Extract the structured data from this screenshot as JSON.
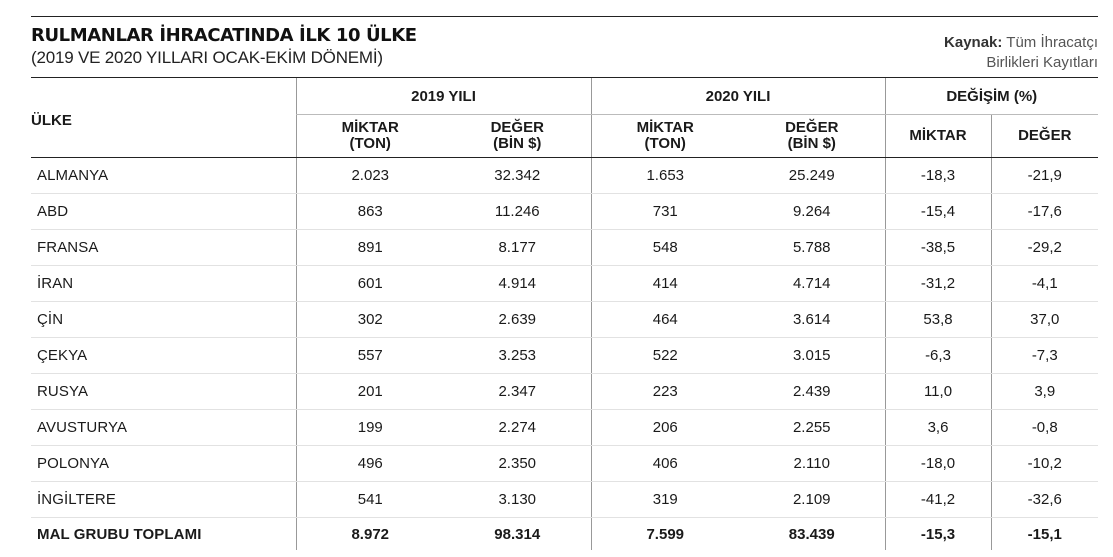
{
  "title": "RULMANLAR İHRACATINDA İLK 10 ÜLKE",
  "subtitle": "(2019 VE 2020 YILLARI OCAK-EKİM DÖNEMİ)",
  "source": {
    "label": "Kaynak:",
    "text_line1": "Tüm İhracatçı",
    "text_line2": "Birlikleri Kayıtları"
  },
  "headers": {
    "country": "ÜLKE",
    "group_2019": "2019 YILI",
    "group_2020": "2020 YILI",
    "group_change": "DEĞİŞİM (%)",
    "qty_line1": "MİKTAR",
    "qty_line2": "(TON)",
    "val_line1": "DEĞER",
    "val_line2": "(BİN $)",
    "change_qty": "MİKTAR",
    "change_val": "DEĞER"
  },
  "rows": [
    {
      "country": "ALMANYA",
      "q2019": "2.023",
      "v2019": "32.342",
      "q2020": "1.653",
      "v2020": "25.249",
      "cq": "-18,3",
      "cv": "-21,9"
    },
    {
      "country": "ABD",
      "q2019": "863",
      "v2019": "11.246",
      "q2020": "731",
      "v2020": "9.264",
      "cq": "-15,4",
      "cv": "-17,6"
    },
    {
      "country": "FRANSA",
      "q2019": "891",
      "v2019": "8.177",
      "q2020": "548",
      "v2020": "5.788",
      "cq": "-38,5",
      "cv": "-29,2"
    },
    {
      "country": "İRAN",
      "q2019": "601",
      "v2019": "4.914",
      "q2020": "414",
      "v2020": "4.714",
      "cq": "-31,2",
      "cv": "-4,1"
    },
    {
      "country": "ÇİN",
      "q2019": "302",
      "v2019": "2.639",
      "q2020": "464",
      "v2020": "3.614",
      "cq": "53,8",
      "cv": "37,0"
    },
    {
      "country": "ÇEKYA",
      "q2019": "557",
      "v2019": "3.253",
      "q2020": "522",
      "v2020": "3.015",
      "cq": "-6,3",
      "cv": "-7,3"
    },
    {
      "country": "RUSYA",
      "q2019": "201",
      "v2019": "2.347",
      "q2020": "223",
      "v2020": "2.439",
      "cq": "11,0",
      "cv": "3,9"
    },
    {
      "country": "AVUSTURYA",
      "q2019": "199",
      "v2019": "2.274",
      "q2020": "206",
      "v2020": "2.255",
      "cq": "3,6",
      "cv": "-0,8"
    },
    {
      "country": "POLONYA",
      "q2019": "496",
      "v2019": "2.350",
      "q2020": "406",
      "v2020": "2.110",
      "cq": "-18,0",
      "cv": "-10,2"
    },
    {
      "country": "İNGİLTERE",
      "q2019": "541",
      "v2019": "3.130",
      "q2020": "319",
      "v2020": "2.109",
      "cq": "-41,2",
      "cv": "-32,6"
    }
  ],
  "total": {
    "country": "MAL GRUBU TOPLAMI",
    "q2019": "8.972",
    "v2019": "98.314",
    "q2020": "7.599",
    "v2020": "83.439",
    "cq": "-15,3",
    "cv": "-15,1"
  }
}
